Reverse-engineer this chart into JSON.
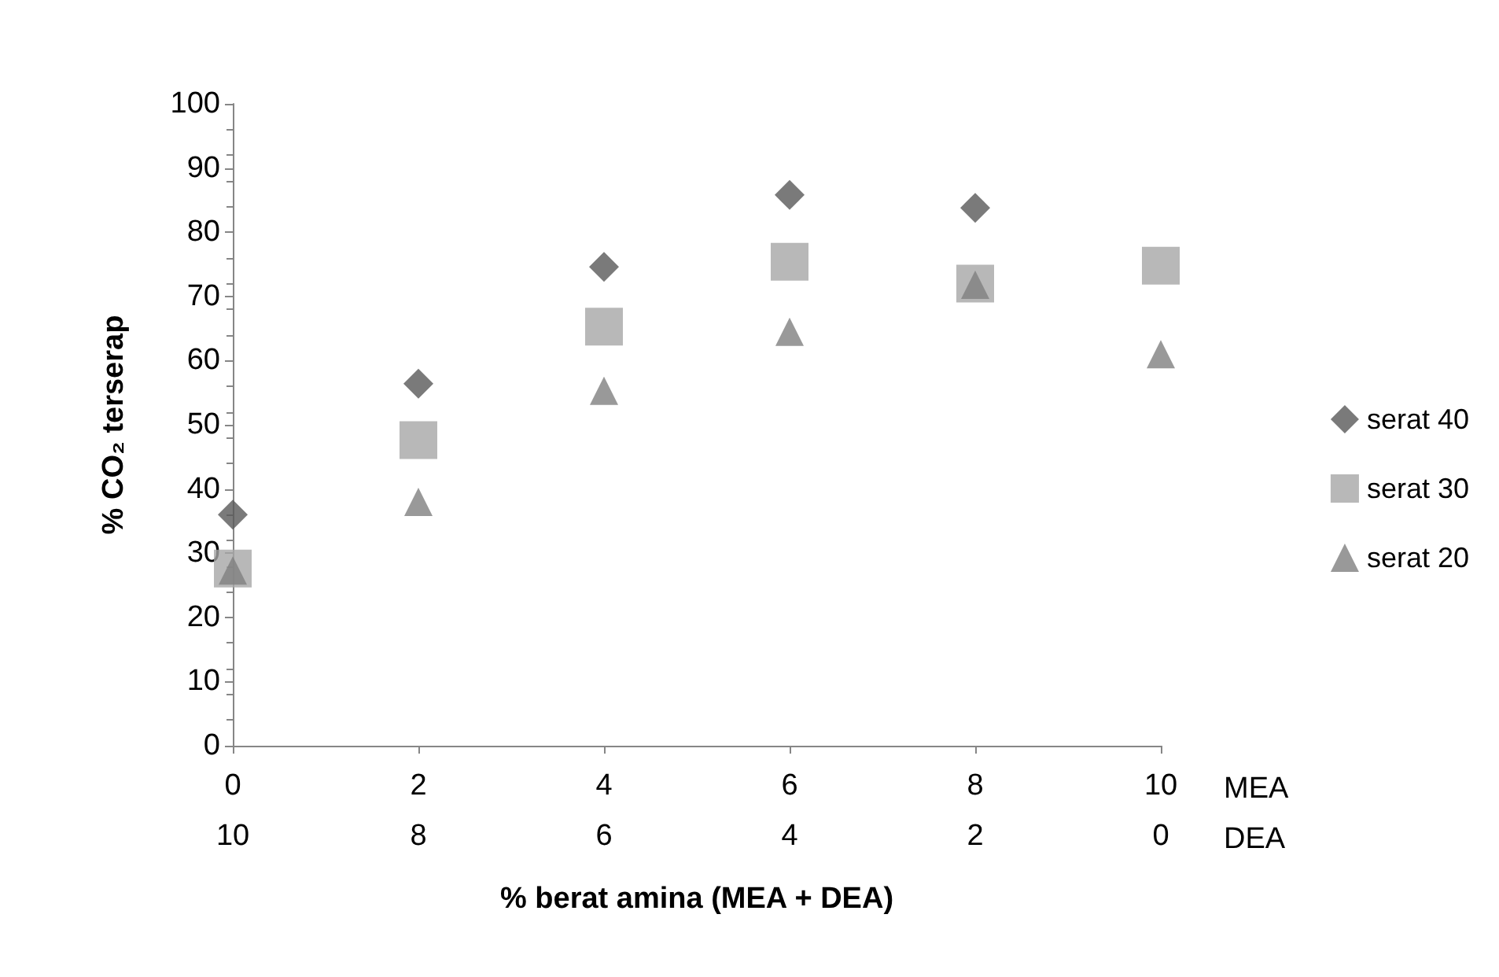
{
  "chart_data": {
    "type": "scatter",
    "xlabel": "% berat amina (MEA + DEA)",
    "ylabel": "% CO₂ terserap",
    "x": [
      0,
      2,
      4,
      6,
      8,
      10
    ],
    "series": [
      {
        "name": "serat 40",
        "color": "#595959",
        "marker": "diamond",
        "values": [
          36,
          56.4,
          74.6,
          85.8,
          83.8,
          null
        ]
      },
      {
        "name": "serat 30",
        "color": "#a6a6a6",
        "marker": "square",
        "values": [
          27.6,
          47.6,
          65.3,
          75.4,
          72,
          74.8
        ]
      },
      {
        "name": "serat 20",
        "color": "#7f7f7f",
        "marker": "triangle",
        "values": [
          27.3,
          38,
          55.3,
          64.5,
          71.8,
          61
        ]
      }
    ],
    "xlim": [
      0,
      10
    ],
    "xticks": [
      0,
      2,
      4,
      6,
      8,
      10
    ],
    "x2lim": [
      10,
      0
    ],
    "x2ticks": [
      10,
      8,
      6,
      4,
      2,
      0
    ],
    "ylim": [
      0,
      100
    ],
    "yticks": [
      0,
      10,
      20,
      30,
      40,
      50,
      60,
      70,
      80,
      90,
      100
    ],
    "annotations": [
      "MEA",
      "DEA"
    ],
    "grid": false,
    "legend": "right"
  }
}
